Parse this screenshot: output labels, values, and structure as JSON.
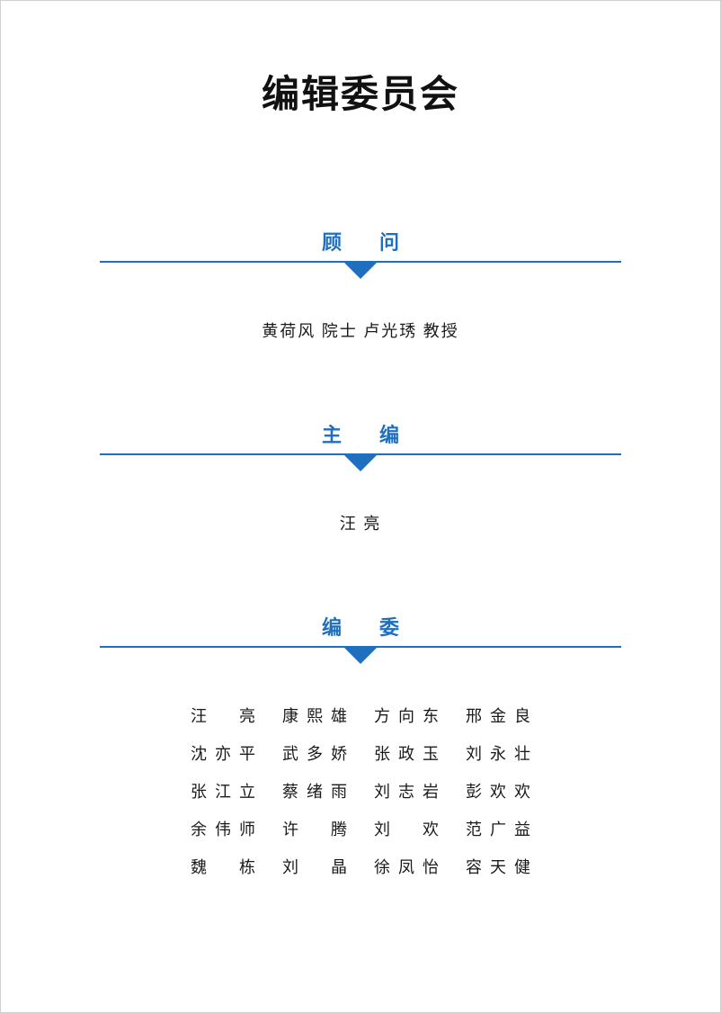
{
  "colors": {
    "accent": "#1f6fbf",
    "text": "#1a1a1a",
    "background": "#ffffff"
  },
  "page_title": "编辑委员会",
  "sections": {
    "advisors": {
      "label": "顾 问",
      "line": "黄荷风 院士  卢光琇 教授"
    },
    "chief_editor": {
      "label": "主 编",
      "line": "汪  亮"
    },
    "committee": {
      "label": "编 委",
      "rows": [
        [
          "汪 亮",
          "康熙雄",
          "方向东",
          "邢金良"
        ],
        [
          "沈亦平",
          "武多娇",
          "张政玉",
          "刘永壮"
        ],
        [
          "张江立",
          "蔡绪雨",
          "刘志岩",
          "彭欢欢"
        ],
        [
          "余伟师",
          "许 腾",
          "刘 欢",
          "范广益"
        ],
        [
          "魏 栋",
          "刘 晶",
          "徐凤怡",
          "容天健"
        ]
      ]
    }
  }
}
